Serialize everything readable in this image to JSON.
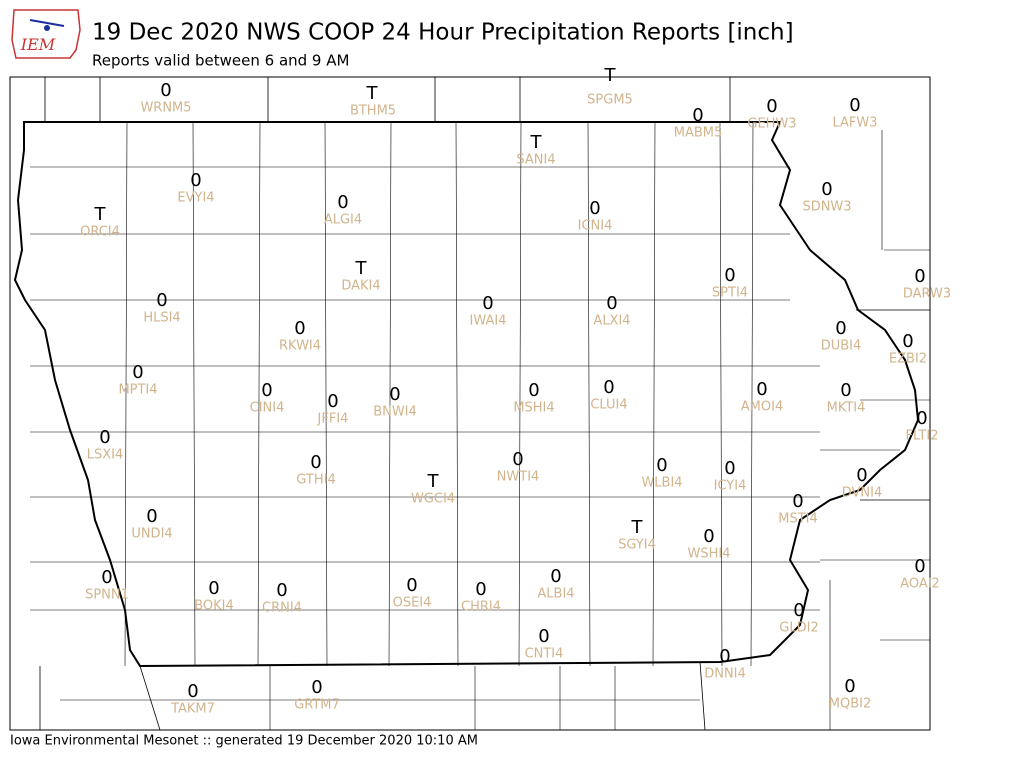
{
  "header": {
    "logo": "IEM",
    "title": "19 Dec 2020 NWS COOP 24 Hour Precipitation Reports [inch]",
    "subtitle": "Reports valid between 6 and 9 AM"
  },
  "stations": [
    {
      "id": "WRNM5",
      "value": 0
    },
    {
      "id": "BTHM5",
      "value": "T"
    },
    {
      "id": "SPGM5",
      "value": "T"
    },
    {
      "id": "MABM5",
      "value": 0
    },
    {
      "id": "GEHW3",
      "value": 0
    },
    {
      "id": "LAFW3",
      "value": 0
    },
    {
      "id": "SANI4",
      "value": "T"
    },
    {
      "id": "EVYI4",
      "value": 0
    },
    {
      "id": "ALGI4",
      "value": 0
    },
    {
      "id": "ICNI4",
      "value": 0
    },
    {
      "id": "SDNW3",
      "value": 0
    },
    {
      "id": "ORCI4",
      "value": "T"
    },
    {
      "id": "DAKI4",
      "value": "T"
    },
    {
      "id": "SPTI4",
      "value": 0
    },
    {
      "id": "DARW3",
      "value": 0
    },
    {
      "id": "HLSI4",
      "value": 0
    },
    {
      "id": "IWAI4",
      "value": 0
    },
    {
      "id": "ALXI4",
      "value": 0
    },
    {
      "id": "RKWI4",
      "value": 0
    },
    {
      "id": "DUBI4",
      "value": 0
    },
    {
      "id": "EZBI2",
      "value": 0
    },
    {
      "id": "MPTI4",
      "value": 0
    },
    {
      "id": "CINI4",
      "value": 0
    },
    {
      "id": "JFFI4",
      "value": 0
    },
    {
      "id": "BNWI4",
      "value": 0
    },
    {
      "id": "MSHI4",
      "value": 0
    },
    {
      "id": "CLUI4",
      "value": 0
    },
    {
      "id": "AMOI4",
      "value": 0
    },
    {
      "id": "MKTI4",
      "value": 0
    },
    {
      "id": "FLTI2",
      "value": 0
    },
    {
      "id": "LSXI4",
      "value": 0
    },
    {
      "id": "GTHI4",
      "value": 0
    },
    {
      "id": "NWTI4",
      "value": 0
    },
    {
      "id": "WLBI4",
      "value": 0
    },
    {
      "id": "ICYI4",
      "value": 0
    },
    {
      "id": "WGCI4",
      "value": "T"
    },
    {
      "id": "DVNI4",
      "value": 0
    },
    {
      "id": "MSTI4",
      "value": 0
    },
    {
      "id": "UNDI4",
      "value": 0
    },
    {
      "id": "SGYI4",
      "value": "T"
    },
    {
      "id": "WSHI4",
      "value": 0
    },
    {
      "id": "AOAI2",
      "value": 0
    },
    {
      "id": "SPNN1",
      "value": 0
    },
    {
      "id": "BOKI4",
      "value": 0
    },
    {
      "id": "CRNI4",
      "value": 0
    },
    {
      "id": "OSEI4",
      "value": 0
    },
    {
      "id": "CHRI4",
      "value": 0
    },
    {
      "id": "ALBI4",
      "value": 0
    },
    {
      "id": "GLDI2",
      "value": 0
    },
    {
      "id": "CNTI4",
      "value": 0
    },
    {
      "id": "DNNI4",
      "value": 0
    },
    {
      "id": "TAKM7",
      "value": 0
    },
    {
      "id": "GRTM7",
      "value": 0
    },
    {
      "id": "MQBI2",
      "value": 0
    }
  ],
  "footer": "Iowa Environmental Mesonet :: generated 19 December 2020 10:10 AM"
}
